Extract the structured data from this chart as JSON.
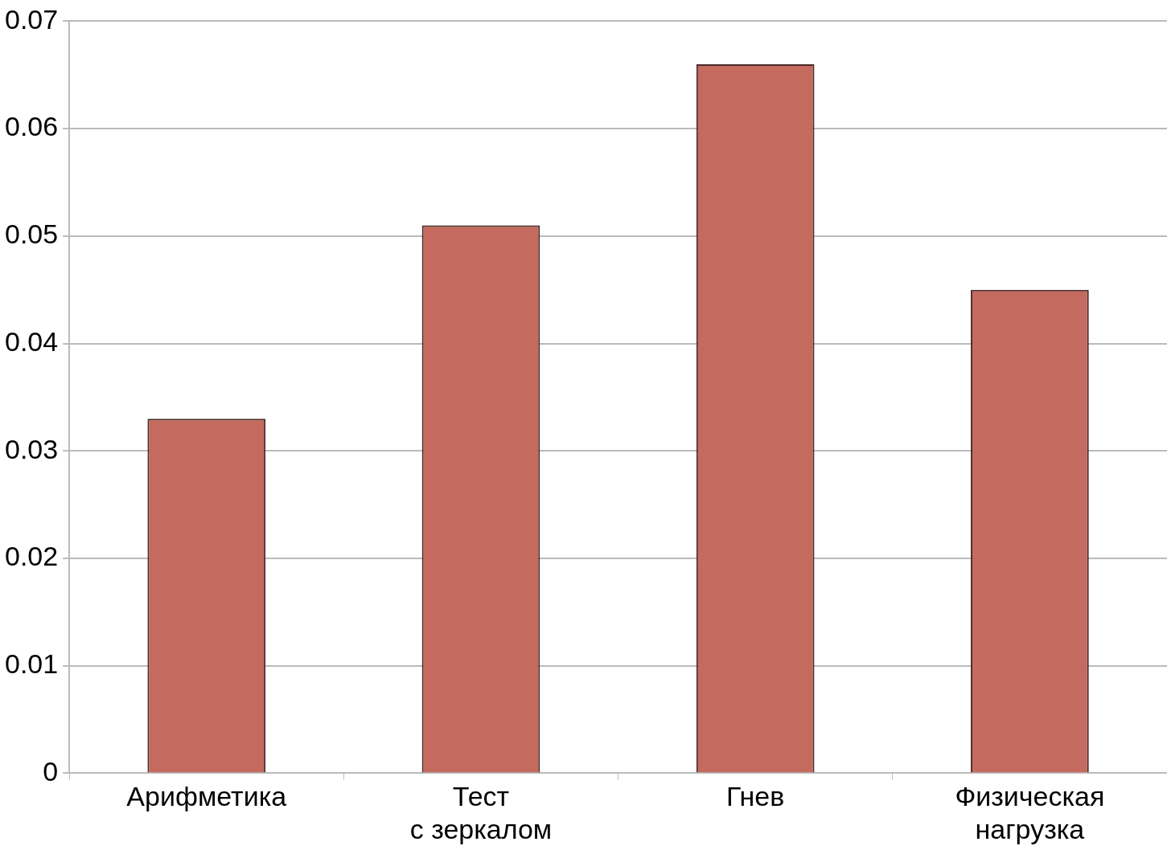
{
  "chart_data": {
    "type": "bar",
    "categories": [
      "Арифметика",
      "Тест\nс зеркалом",
      "Гнев",
      "Физическая\nнагрузка"
    ],
    "values": [
      0.033,
      0.051,
      0.066,
      0.045
    ],
    "color": "#c46a5e",
    "ylim": [
      0,
      0.07
    ],
    "yticks": [
      0,
      0.01,
      0.02,
      0.03,
      0.04,
      0.05,
      0.06,
      0.07
    ],
    "grid": "y",
    "legend": false
  }
}
